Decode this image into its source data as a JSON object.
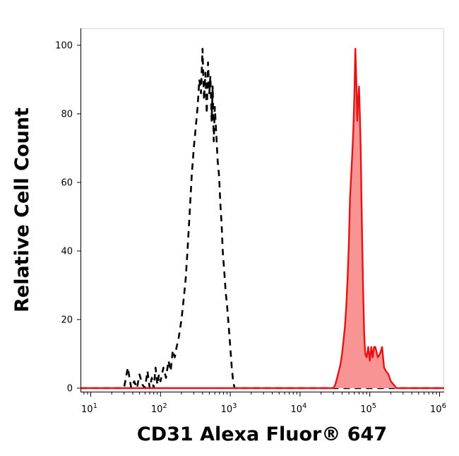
{
  "chart_data": {
    "type": "area",
    "xlabel": "CD31 Alexa Fluor® 647",
    "ylabel": "Relative Cell Count",
    "x_scale": "log",
    "xlim": [
      7,
      1200000
    ],
    "ylim": [
      -1,
      100
    ],
    "x_ticks": [
      {
        "base": "10",
        "exp": "1",
        "value": 10
      },
      {
        "base": "10",
        "exp": "2",
        "value": 100
      },
      {
        "base": "10",
        "exp": "3",
        "value": 1000
      },
      {
        "base": "10",
        "exp": "4",
        "value": 10000
      },
      {
        "base": "10",
        "exp": "5",
        "value": 100000
      },
      {
        "base": "10",
        "exp": "6",
        "value": 1000000
      }
    ],
    "y_ticks": [
      {
        "label": "0",
        "value": 0
      },
      {
        "label": "20",
        "value": 20
      },
      {
        "label": "40",
        "value": 40
      },
      {
        "label": "60",
        "value": 60
      },
      {
        "label": "80",
        "value": 80
      },
      {
        "label": "100",
        "value": 100
      }
    ],
    "grid": false,
    "series": [
      {
        "style": "dashed",
        "color": "#000000",
        "fill": "none",
        "x": [
          7,
          30,
          34,
          38,
          42,
          46,
          50,
          55,
          60,
          65,
          70,
          75,
          80,
          85,
          90,
          95,
          100,
          110,
          120,
          130,
          140,
          150,
          160,
          170,
          180,
          190,
          200,
          210,
          220,
          230,
          240,
          250,
          260,
          270,
          280,
          290,
          300,
          320,
          340,
          360,
          380,
          400,
          420,
          440,
          460,
          480,
          500,
          520,
          540,
          560,
          580,
          600,
          630,
          660,
          690,
          720,
          750,
          780,
          820,
          860,
          900,
          950,
          1000,
          1050,
          1100,
          1150,
          1200,
          1300,
          1400,
          1500,
          1600,
          1800,
          2000,
          1200000
        ],
        "y": [
          0,
          0,
          6,
          0,
          2,
          0,
          4,
          1,
          0,
          5,
          0,
          3,
          0,
          6,
          1,
          4,
          2,
          6,
          3,
          8,
          5,
          11,
          9,
          12,
          14,
          17,
          20,
          24,
          28,
          32,
          38,
          44,
          50,
          56,
          62,
          66,
          70,
          76,
          82,
          90,
          86,
          99,
          84,
          92,
          80,
          95,
          86,
          91,
          78,
          88,
          72,
          82,
          74,
          66,
          62,
          54,
          48,
          40,
          34,
          28,
          24,
          18,
          12,
          6,
          2,
          0,
          0,
          0,
          0,
          0,
          0,
          0,
          0,
          0
        ]
      },
      {
        "style": "solid",
        "color": "#e41414",
        "fill": "#f99494",
        "x": [
          7,
          30000,
          32000,
          34000,
          36000,
          38000,
          40000,
          42000,
          44000,
          46000,
          48000,
          50000,
          52000,
          54000,
          56000,
          58000,
          60000,
          62000,
          64000,
          66000,
          68000,
          70000,
          72000,
          74000,
          76000,
          78000,
          80000,
          83000,
          86000,
          90000,
          95000,
          100000,
          105000,
          110000,
          115000,
          120000,
          130000,
          140000,
          150000,
          160000,
          170000,
          185000,
          200000,
          220000,
          240000,
          1200000
        ],
        "y": [
          0,
          0,
          1,
          3,
          5,
          7,
          10,
          14,
          18,
          24,
          32,
          42,
          55,
          62,
          68,
          75,
          85,
          99,
          90,
          78,
          84,
          88,
          80,
          70,
          55,
          42,
          30,
          16,
          10,
          9,
          12,
          8,
          12,
          9,
          12,
          12,
          9,
          10,
          12,
          6,
          5,
          4,
          2,
          1,
          0,
          0
        ]
      }
    ]
  }
}
